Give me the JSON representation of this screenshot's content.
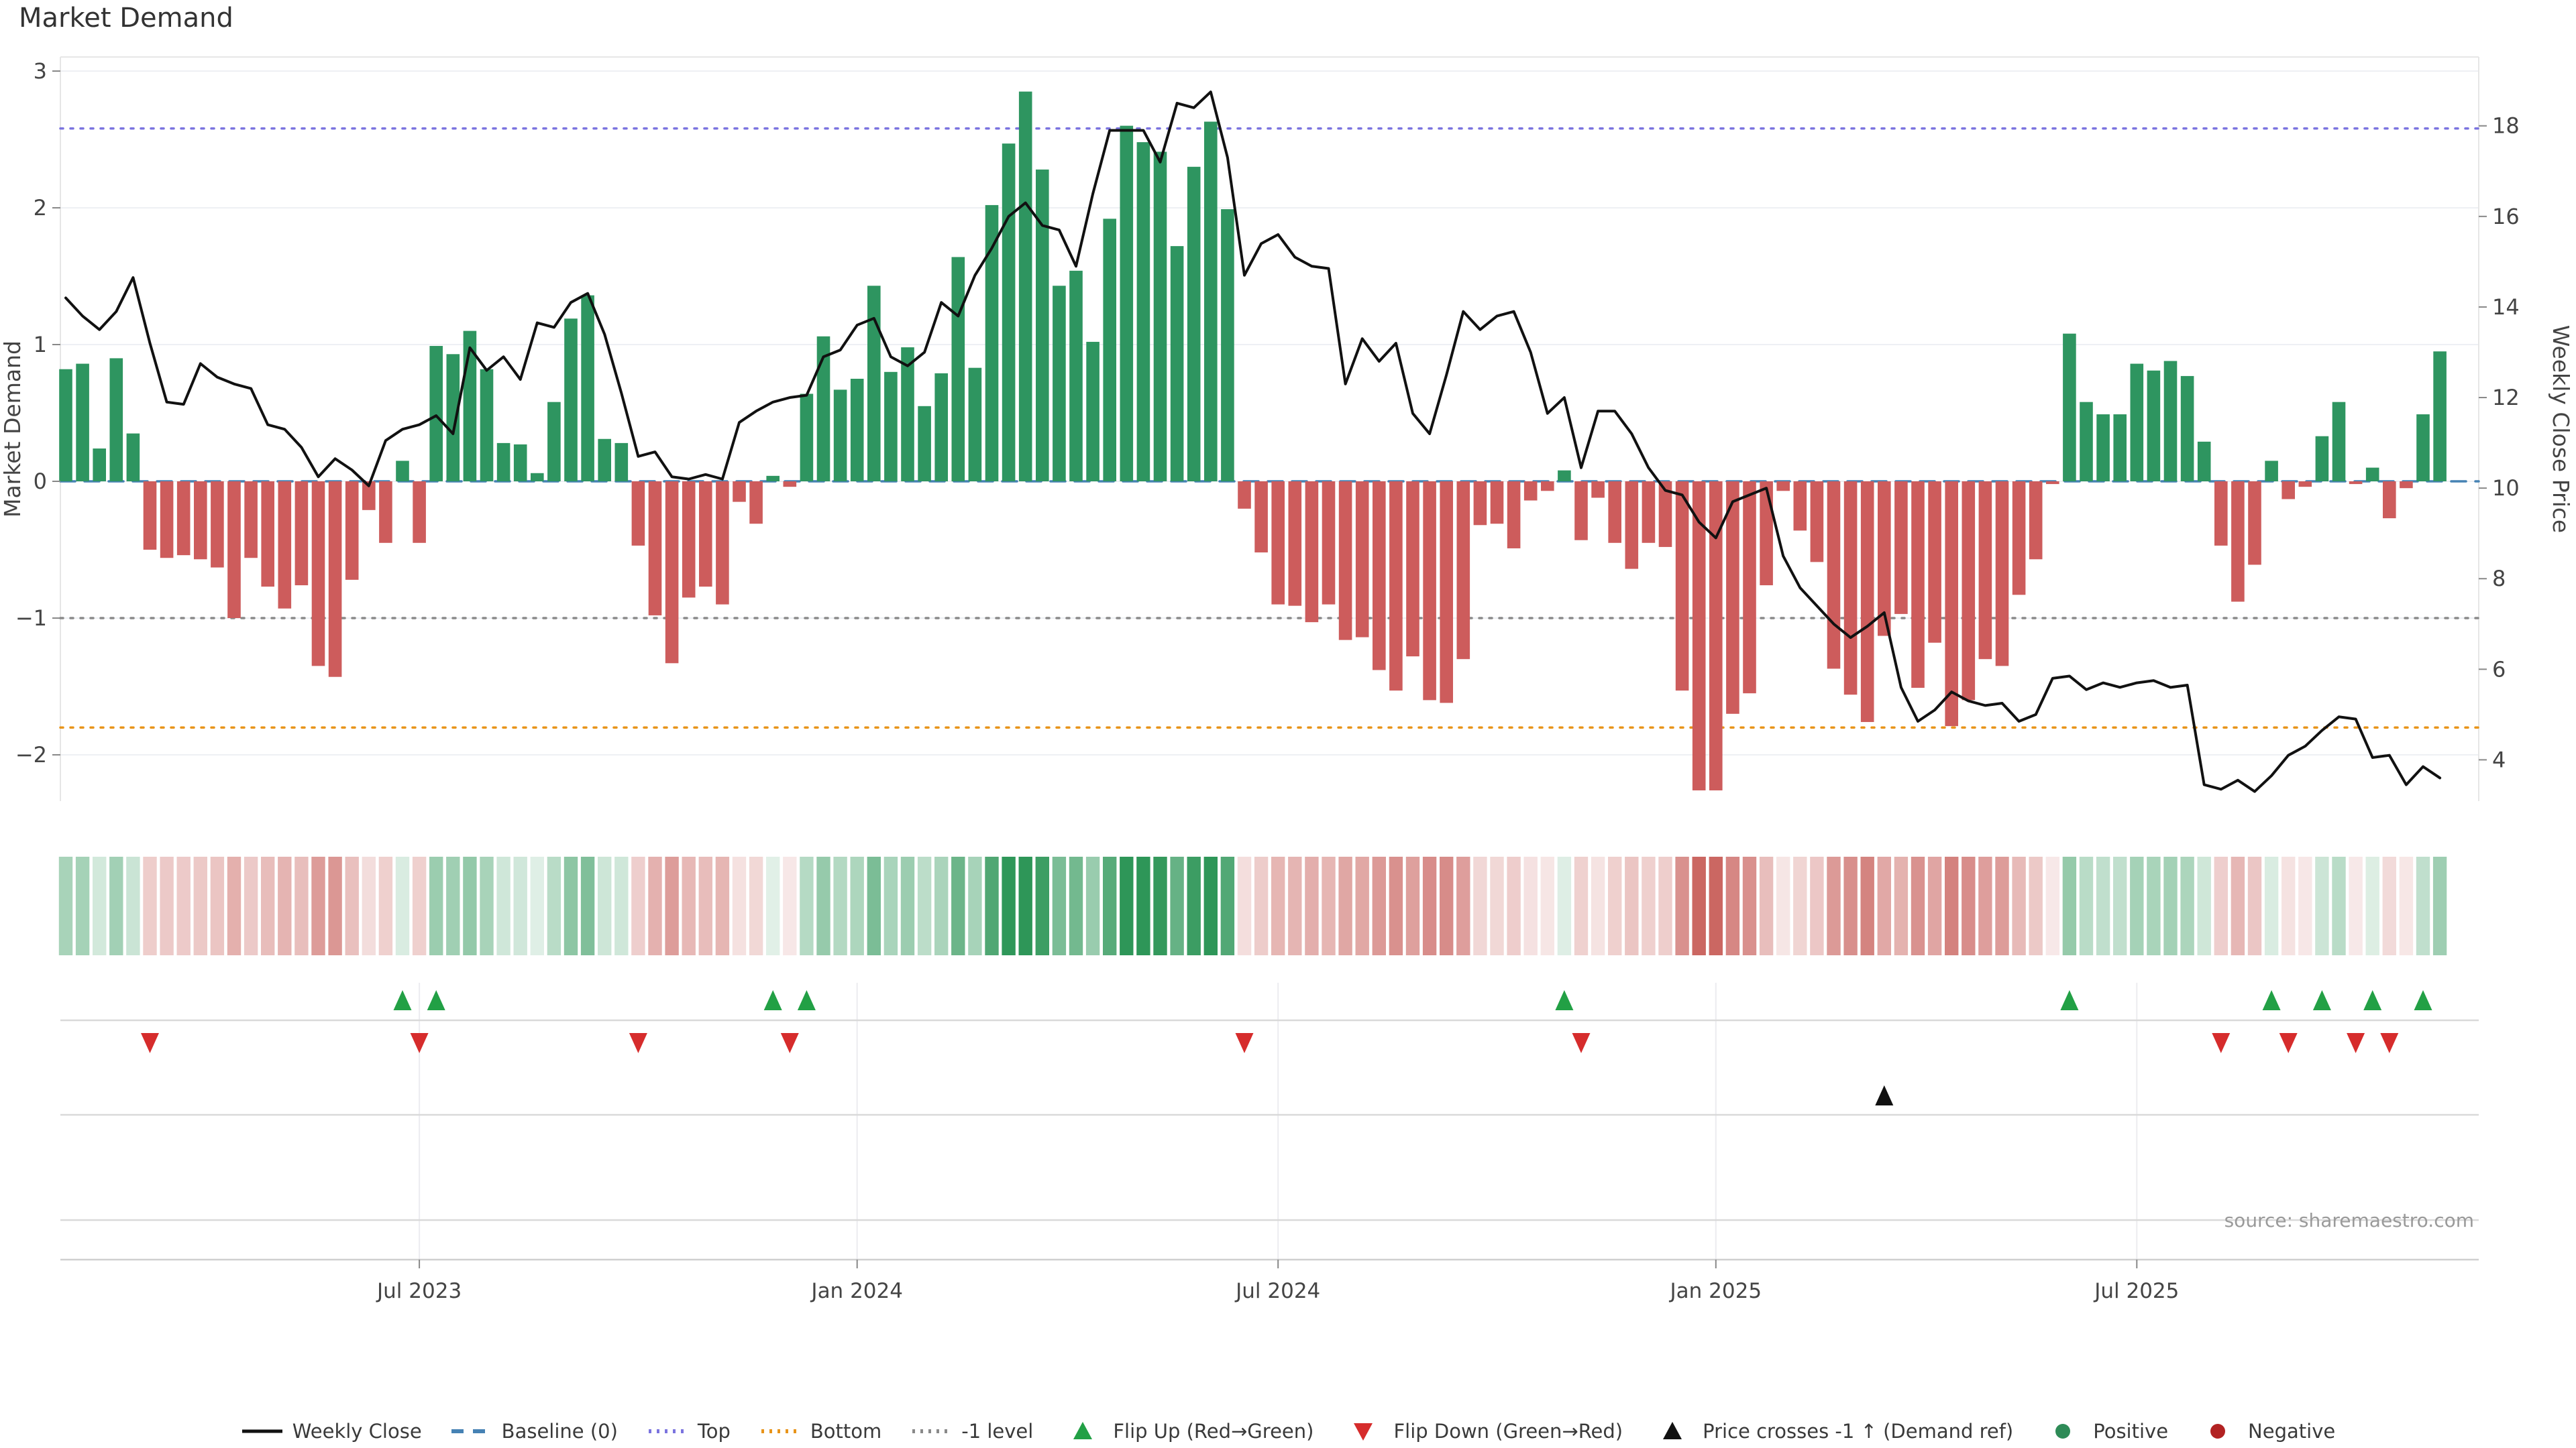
{
  "title": "Market Demand",
  "source": "source: sharemaestro.com",
  "left_axis": {
    "label": "Market Demand",
    "ticks": [
      {
        "v": 3,
        "t": "3"
      },
      {
        "v": 2,
        "t": "2"
      },
      {
        "v": 1,
        "t": "1"
      },
      {
        "v": 0,
        "t": "0"
      },
      {
        "v": -1,
        "t": "−1"
      },
      {
        "v": -2,
        "t": "−2"
      }
    ]
  },
  "right_axis": {
    "label": "Weekly Close Price",
    "ticks": [
      {
        "v": 18,
        "t": "18"
      },
      {
        "v": 16,
        "t": "16"
      },
      {
        "v": 14,
        "t": "14"
      },
      {
        "v": 12,
        "t": "12"
      },
      {
        "v": 10,
        "t": "10"
      },
      {
        "v": 8,
        "t": "8"
      },
      {
        "v": 6,
        "t": "6"
      },
      {
        "v": 4,
        "t": "4"
      }
    ]
  },
  "x_axis": {
    "ticks": [
      {
        "week": 21,
        "t": "Jul 2023"
      },
      {
        "week": 47,
        "t": "Jan 2024"
      },
      {
        "week": 72,
        "t": "Jul 2024"
      },
      {
        "week": 98,
        "t": "Jan 2025"
      },
      {
        "week": 123,
        "t": "Jul 2025"
      }
    ]
  },
  "legend": [
    {
      "label": "Weekly Close",
      "swatch": "line",
      "color": "#111111"
    },
    {
      "label": "Baseline (0)",
      "swatch": "dashed",
      "color": "#4682B4"
    },
    {
      "label": "Top",
      "swatch": "dotted",
      "color": "#7B74DF"
    },
    {
      "label": "Bottom",
      "swatch": "dotted",
      "color": "#E8941A"
    },
    {
      "label": "-1 level",
      "swatch": "dotted",
      "color": "#8a8a8a"
    },
    {
      "label": "Flip Up (Red→Green)",
      "swatch": "triangle-up",
      "color": "#22A045"
    },
    {
      "label": "Flip Down (Green→Red)",
      "swatch": "triangle-down",
      "color": "#D62C2C"
    },
    {
      "label": "Price crosses -1 ↑ (Demand ref)",
      "swatch": "triangle-up",
      "color": "#111111"
    },
    {
      "label": "Positive",
      "swatch": "circle",
      "color": "#2E8B57"
    },
    {
      "label": "Negative",
      "swatch": "circle",
      "color": "#B22222"
    }
  ],
  "chart_data": {
    "type": "bar",
    "subtype": "bar+line combo with heatmap strip and event marker rows",
    "title": "Market Demand",
    "x_unit": "week",
    "n_weeks": 142,
    "x_tick_labels": [
      "Jul 2023",
      "Jan 2024",
      "Jul 2024",
      "Jan 2025",
      "Jul 2025"
    ],
    "x_tick_week_index": [
      21,
      47,
      72,
      98,
      123
    ],
    "left_ylabel": "Market Demand",
    "right_ylabel": "Weekly Close Price",
    "left_ylim": [
      -2.34,
      3.1
    ],
    "right_ylim": [
      3.1,
      19.5
    ],
    "grid": "horizontal-light",
    "series": [
      {
        "name": "Market Demand (bars)",
        "axis": "left",
        "type": "bar",
        "values": [
          0.82,
          0.86,
          0.24,
          0.9,
          0.35,
          -0.5,
          -0.56,
          -0.54,
          -0.57,
          -0.63,
          -1.0,
          -0.56,
          -0.77,
          -0.93,
          -0.76,
          -1.35,
          -1.43,
          -0.72,
          -0.21,
          -0.45,
          0.15,
          -0.45,
          0.99,
          0.93,
          1.1,
          0.82,
          0.28,
          0.27,
          0.06,
          0.58,
          1.19,
          1.36,
          0.31,
          0.28,
          -0.47,
          -0.98,
          -1.33,
          -0.85,
          -0.77,
          -0.9,
          -0.15,
          -0.31,
          0.04,
          -0.04,
          0.64,
          1.06,
          0.67,
          0.75,
          1.43,
          0.8,
          0.98,
          0.55,
          0.79,
          1.64,
          0.83,
          2.02,
          2.47,
          2.85,
          2.28,
          1.43,
          1.54,
          1.02,
          1.92,
          2.6,
          2.48,
          2.41,
          1.72,
          2.3,
          2.63,
          1.99,
          -0.2,
          -0.52,
          -0.9,
          -0.91,
          -1.03,
          -0.9,
          -1.16,
          -1.14,
          -1.38,
          -1.53,
          -1.28,
          -1.6,
          -1.62,
          -1.3,
          -0.32,
          -0.31,
          -0.49,
          -0.14,
          -0.07,
          0.08,
          -0.43,
          -0.12,
          -0.45,
          -0.64,
          -0.45,
          -0.48,
          -1.53,
          -2.26,
          -2.26,
          -1.7,
          -1.55,
          -0.76,
          -0.07,
          -0.36,
          -0.59,
          -1.37,
          -1.56,
          -1.76,
          -1.13,
          -0.97,
          -1.51,
          -1.18,
          -1.79,
          -1.6,
          -1.3,
          -1.35,
          -0.83,
          -0.57,
          -0.02,
          1.08,
          0.58,
          0.49,
          0.49,
          0.86,
          0.81,
          0.88,
          0.77,
          0.29,
          -0.47,
          -0.88,
          -0.61,
          0.15,
          -0.13,
          -0.04,
          0.33,
          0.58,
          -0.02,
          0.1,
          -0.27,
          -0.05,
          0.49,
          0.95
        ]
      },
      {
        "name": "Weekly Close",
        "axis": "right",
        "type": "line",
        "values": [
          14.2,
          13.8,
          13.5,
          13.9,
          14.65,
          13.2,
          11.9,
          11.85,
          12.75,
          12.45,
          12.3,
          12.2,
          11.4,
          11.3,
          10.9,
          10.25,
          10.65,
          10.4,
          10.05,
          11.05,
          11.3,
          11.4,
          11.6,
          11.2,
          13.1,
          12.6,
          12.9,
          12.4,
          13.65,
          13.55,
          14.1,
          14.3,
          13.4,
          12.1,
          10.7,
          10.8,
          10.25,
          10.2,
          10.3,
          10.2,
          11.45,
          11.7,
          11.9,
          12.0,
          12.05,
          12.9,
          13.05,
          13.6,
          13.75,
          12.9,
          12.7,
          13.0,
          14.1,
          13.8,
          14.7,
          15.3,
          16.0,
          16.3,
          15.8,
          15.7,
          14.9,
          16.5,
          17.9,
          17.9,
          17.9,
          17.2,
          18.5,
          18.4,
          18.75,
          17.3,
          14.7,
          15.4,
          15.6,
          15.1,
          14.9,
          14.85,
          12.3,
          13.3,
          12.8,
          13.2,
          11.65,
          11.2,
          12.5,
          13.9,
          13.5,
          13.8,
          13.9,
          13.0,
          11.65,
          12.0,
          10.45,
          11.7,
          11.7,
          11.2,
          10.45,
          9.95,
          9.85,
          9.25,
          8.9,
          9.7,
          9.85,
          10.0,
          8.5,
          7.8,
          7.4,
          7.0,
          6.7,
          6.95,
          7.25,
          5.6,
          4.85,
          5.1,
          5.5,
          5.3,
          5.2,
          5.25,
          4.85,
          5.0,
          5.8,
          5.85,
          5.55,
          5.7,
          5.6,
          5.7,
          5.75,
          5.6,
          5.65,
          3.45,
          3.35,
          3.55,
          3.3,
          3.65,
          4.1,
          4.3,
          4.65,
          4.95,
          4.9,
          4.05,
          4.1,
          3.45,
          3.85,
          3.6
        ]
      }
    ],
    "reference_lines": [
      {
        "name": "Baseline (0)",
        "value": 0,
        "axis": "left",
        "style": "dashed",
        "color": "#4682B4"
      },
      {
        "name": "Top",
        "value": 2.58,
        "axis": "left",
        "style": "dotted",
        "color": "#7B74DF"
      },
      {
        "name": "Bottom",
        "value": -1.8,
        "axis": "left",
        "style": "dotted",
        "color": "#E8941A"
      },
      {
        "name": "-1 level",
        "value": -1,
        "axis": "left",
        "style": "dotted",
        "color": "#8a8a8a"
      }
    ],
    "events": {
      "flip_up_weeks": [
        20,
        22,
        42,
        44,
        89,
        119,
        131,
        134,
        137,
        140
      ],
      "flip_down_weeks": [
        5,
        21,
        34,
        43,
        70,
        90,
        128,
        132,
        136,
        138
      ],
      "price_cross_minus1_up_weeks": [
        108
      ]
    },
    "heatmap_strip": "one cell per week, red-green intensity derived from Market Demand bar values",
    "colors": {
      "positive_bar": "#2E9560",
      "negative_bar": "#CD5C5C",
      "price_line": "#111111",
      "heat_green": [
        46,
        150,
        88
      ],
      "heat_red": [
        198,
        90,
        85
      ],
      "flip_up_marker": "#22A045",
      "flip_down_marker": "#D62C2C",
      "price_cross_marker": "#111111",
      "grid": "#eef0f4",
      "spine": "#e6e6e6",
      "row_line": "#d9d9d9",
      "tick_text": "#444444"
    },
    "legend_position": "bottom-center"
  }
}
